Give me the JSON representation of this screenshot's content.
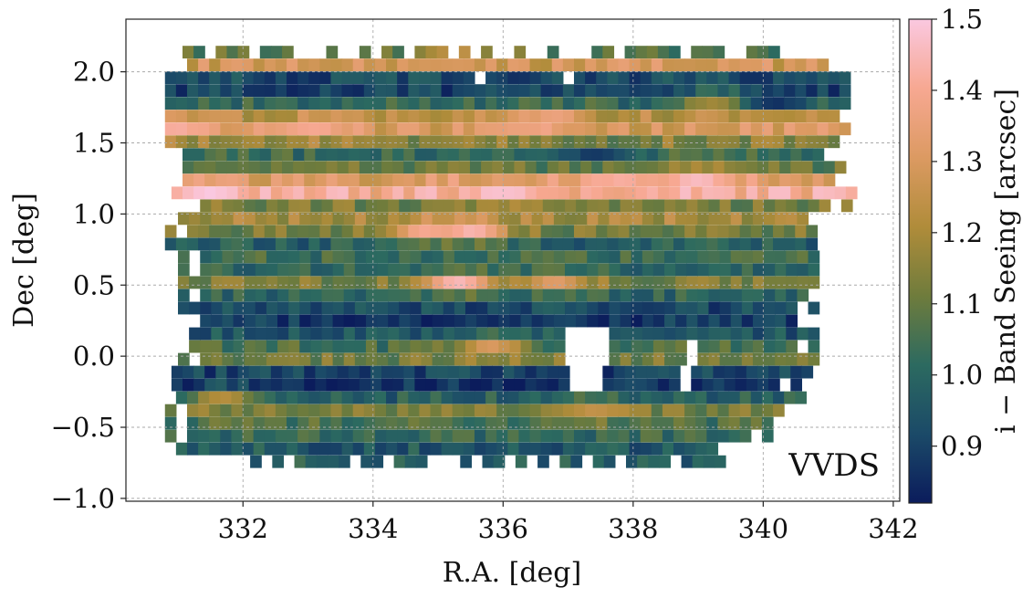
{
  "chart_data": {
    "type": "heatmap",
    "title": "",
    "annotation": "VVDS",
    "xlabel": "R.A. [deg]",
    "ylabel": "Dec [deg]",
    "colorbar_label": "i − Band Seeing [arcsec]",
    "xlim": [
      330.2,
      342.1
    ],
    "ylim": [
      -1.02,
      2.37
    ],
    "clim": [
      0.82,
      1.5
    ],
    "x_ticks": [
      332,
      334,
      336,
      338,
      340,
      342
    ],
    "x_tick_labels": [
      "332",
      "334",
      "336",
      "338",
      "340",
      "342"
    ],
    "y_ticks": [
      -1.0,
      -0.5,
      0.0,
      0.5,
      1.0,
      1.5,
      2.0
    ],
    "y_tick_labels": [
      "−1.0",
      "−0.5",
      "0.0",
      "0.5",
      "1.0",
      "1.5",
      "2.0"
    ],
    "colorbar_ticks": [
      0.9,
      1.0,
      1.1,
      1.2,
      1.3,
      1.4,
      1.5
    ],
    "colorbar_tick_labels": [
      "0.9",
      "1.0",
      "1.1",
      "1.2",
      "1.3",
      "1.4",
      "1.5"
    ],
    "grid": true,
    "colormap": [
      "#0b1c5c",
      "#1b4a68",
      "#2c6a60",
      "#6f7c3c",
      "#b08c3a",
      "#dc9a62",
      "#f7a892",
      "#fac8e0"
    ],
    "row_step_deg": 0.085,
    "col_step_deg": 0.17,
    "dec_rows": [
      {
        "dec": 2.14,
        "ra_min": 330.9,
        "ra_max": 340.2,
        "seeing": 1.08
      },
      {
        "dec": 2.05,
        "ra_min": 330.8,
        "ra_max": 341.4,
        "seeing": 1.28
      },
      {
        "dec": 1.96,
        "ra_min": 330.8,
        "ra_max": 341.4,
        "seeing": 0.92
      },
      {
        "dec": 1.87,
        "ra_min": 330.8,
        "ra_max": 341.4,
        "seeing": 0.9
      },
      {
        "dec": 1.78,
        "ra_min": 330.8,
        "ra_max": 341.4,
        "seeing": 1.02
      },
      {
        "dec": 1.69,
        "ra_min": 330.8,
        "ra_max": 341.4,
        "seeing": 1.22
      },
      {
        "dec": 1.6,
        "ra_min": 330.8,
        "ra_max": 341.4,
        "seeing": 1.3
      },
      {
        "dec": 1.51,
        "ra_min": 330.8,
        "ra_max": 341.4,
        "seeing": 1.15
      },
      {
        "dec": 1.42,
        "ra_min": 330.9,
        "ra_max": 341.3,
        "seeing": 1.03
      },
      {
        "dec": 1.33,
        "ra_min": 330.9,
        "ra_max": 341.3,
        "seeing": 1.1
      },
      {
        "dec": 1.24,
        "ra_min": 330.9,
        "ra_max": 341.4,
        "seeing": 1.32
      },
      {
        "dec": 1.15,
        "ra_min": 330.9,
        "ra_max": 341.4,
        "seeing": 1.4
      },
      {
        "dec": 1.06,
        "ra_min": 331.0,
        "ra_max": 341.4,
        "seeing": 1.12
      },
      {
        "dec": 0.97,
        "ra_min": 331.0,
        "ra_max": 341.1,
        "seeing": 1.2
      },
      {
        "dec": 0.88,
        "ra_min": 330.8,
        "ra_max": 341.1,
        "seeing": 1.12
      },
      {
        "dec": 0.79,
        "ra_min": 330.8,
        "ra_max": 341.0,
        "seeing": 0.98
      },
      {
        "dec": 0.7,
        "ra_min": 331.0,
        "ra_max": 341.0,
        "seeing": 1.04
      },
      {
        "dec": 0.61,
        "ra_min": 331.0,
        "ra_max": 341.0,
        "seeing": 1.0
      },
      {
        "dec": 0.52,
        "ra_min": 331.0,
        "ra_max": 340.9,
        "seeing": 1.13
      },
      {
        "dec": 0.43,
        "ra_min": 331.0,
        "ra_max": 340.9,
        "seeing": 1.0
      },
      {
        "dec": 0.34,
        "ra_min": 331.0,
        "ra_max": 340.9,
        "seeing": 0.92
      },
      {
        "dec": 0.25,
        "ra_min": 331.0,
        "ra_max": 340.8,
        "seeing": 0.88
      },
      {
        "dec": 0.16,
        "ra_min": 331.0,
        "ra_max": 340.8,
        "seeing": 0.95
      },
      {
        "dec": 0.07,
        "ra_min": 331.0,
        "ra_max": 340.8,
        "seeing": 1.05
      },
      {
        "dec": -0.02,
        "ra_min": 331.0,
        "ra_max": 340.8,
        "seeing": 1.12
      },
      {
        "dec": -0.11,
        "ra_min": 330.9,
        "ra_max": 340.7,
        "seeing": 0.9
      },
      {
        "dec": -0.2,
        "ra_min": 330.9,
        "ra_max": 340.6,
        "seeing": 0.86
      },
      {
        "dec": -0.29,
        "ra_min": 330.8,
        "ra_max": 340.6,
        "seeing": 0.98
      },
      {
        "dec": -0.38,
        "ra_min": 330.8,
        "ra_max": 340.4,
        "seeing": 1.12
      },
      {
        "dec": -0.47,
        "ra_min": 330.8,
        "ra_max": 340.2,
        "seeing": 1.06
      },
      {
        "dec": -0.56,
        "ra_min": 330.8,
        "ra_max": 340.1,
        "seeing": 1.02
      },
      {
        "dec": -0.65,
        "ra_min": 330.8,
        "ra_max": 339.6,
        "seeing": 0.96
      },
      {
        "dec": -0.74,
        "ra_min": 331.6,
        "ra_max": 339.4,
        "seeing": 0.98
      }
    ],
    "hotspots": [
      {
        "ra": 331.5,
        "dec": 1.15,
        "seeing": 1.5
      },
      {
        "ra": 331.0,
        "dec": 1.6,
        "seeing": 1.42
      },
      {
        "ra": 333.1,
        "dec": 1.6,
        "seeing": 1.4
      },
      {
        "ra": 336.0,
        "dec": 1.15,
        "seeing": 1.48
      },
      {
        "ra": 336.7,
        "dec": 1.65,
        "seeing": 1.4
      },
      {
        "ra": 337.8,
        "dec": 1.24,
        "seeing": 1.42
      },
      {
        "ra": 339.0,
        "dec": 1.24,
        "seeing": 1.46
      },
      {
        "ra": 335.3,
        "dec": 0.52,
        "seeing": 1.45
      },
      {
        "ra": 335.5,
        "dec": 0.88,
        "seeing": 1.45
      },
      {
        "ra": 334.8,
        "dec": 0.88,
        "seeing": 1.4
      },
      {
        "ra": 336.8,
        "dec": 0.52,
        "seeing": 1.32
      },
      {
        "ra": 335.8,
        "dec": 0.07,
        "seeing": 1.3
      },
      {
        "ra": 335.2,
        "dec": 2.1,
        "seeing": 1.3
      },
      {
        "ra": 337.4,
        "dec": -0.38,
        "seeing": 1.25
      },
      {
        "ra": 331.7,
        "dec": -0.29,
        "seeing": 1.22
      },
      {
        "ra": 339.3,
        "dec": 1.8,
        "seeing": 1.22
      },
      {
        "ra": 340.2,
        "dec": 1.8,
        "seeing": 0.85
      },
      {
        "ra": 337.4,
        "dec": 1.42,
        "seeing": 0.88
      }
    ],
    "holes": [
      {
        "ra_min": 337.0,
        "ra_max": 337.6,
        "dec_min": -0.27,
        "dec_max": 0.18
      },
      {
        "ra_min": 338.75,
        "ra_max": 338.95,
        "dec_min": -0.25,
        "dec_max": 0.07
      },
      {
        "ra_min": 336.95,
        "ra_max": 337.15,
        "dec_min": 1.9,
        "dec_max": 1.98
      },
      {
        "ra_min": 335.6,
        "ra_max": 335.75,
        "dec_min": 1.9,
        "dec_max": 1.98
      }
    ]
  }
}
